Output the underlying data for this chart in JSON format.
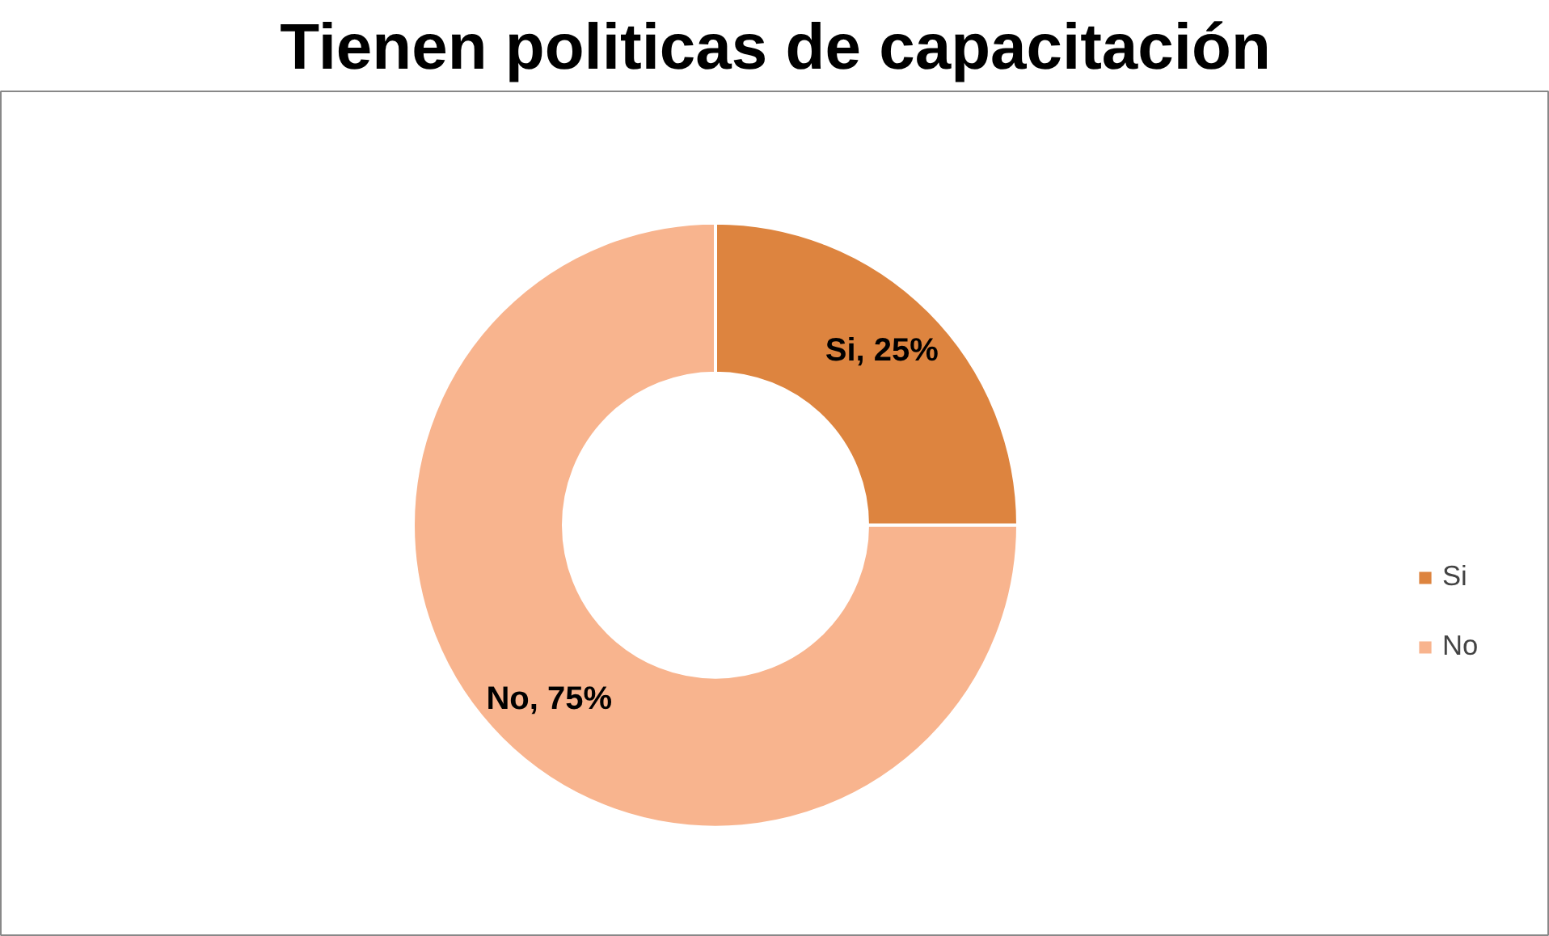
{
  "chart_data": {
    "type": "donut",
    "title": "Tienen politicas de capacitación",
    "categories": [
      "Si",
      "No"
    ],
    "values": [
      25,
      75
    ],
    "colors": [
      "#dd843f",
      "#f8b48e"
    ],
    "value_labels": [
      "Si, 25%",
      "No, 75%"
    ],
    "legend": "right"
  }
}
